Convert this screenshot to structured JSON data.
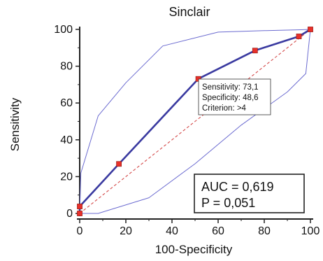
{
  "chart_data": {
    "type": "line",
    "title": "Sinclair",
    "xlabel": "100-Specificity",
    "ylabel": "Sensitivity",
    "xlim": [
      0,
      100
    ],
    "ylim": [
      0,
      100
    ],
    "xticks": [
      "0",
      "20",
      "40",
      "60",
      "80",
      "100"
    ],
    "yticks": [
      "0",
      "20",
      "40",
      "60",
      "80",
      "100"
    ],
    "x_tick_values": [
      0,
      20,
      40,
      60,
      80,
      100
    ],
    "y_tick_values": [
      0,
      20,
      40,
      60,
      80,
      100
    ],
    "grid": false,
    "colors": {
      "roc": "#3a3aa0",
      "ci": "#6b6bd0",
      "diagonal": "#d44a4a",
      "marker": "#e8302a",
      "axis": "#222222"
    },
    "series": [
      {
        "role": "roc",
        "x": [
          0,
          0,
          17,
          51.4,
          76,
          95,
          100
        ],
        "y": [
          0,
          3.8,
          26.9,
          73.1,
          88.5,
          96.2,
          100
        ]
      },
      {
        "role": "ci-upper",
        "x": [
          0,
          0.5,
          8,
          20,
          36,
          60,
          80,
          96,
          100
        ],
        "y": [
          0,
          22,
          53,
          71,
          91,
          98.5,
          99.3,
          99.8,
          100
        ]
      },
      {
        "role": "ci-lower",
        "x": [
          0,
          8,
          30,
          50,
          70,
          80,
          90,
          98,
          100
        ],
        "y": [
          0,
          0,
          8.5,
          27,
          48,
          57,
          66,
          76,
          100
        ]
      },
      {
        "role": "diagonal",
        "x": [
          0,
          100
        ],
        "y": [
          0,
          100
        ]
      }
    ],
    "annotation": {
      "lines": [
        "Sensitivity: 73,1",
        "Specificity: 48,6",
        "Criterion: >4"
      ],
      "point": {
        "x": 51.4,
        "y": 73.1
      }
    },
    "stats": {
      "lines": [
        "AUC = 0,619",
        "P = 0,051"
      ]
    }
  }
}
